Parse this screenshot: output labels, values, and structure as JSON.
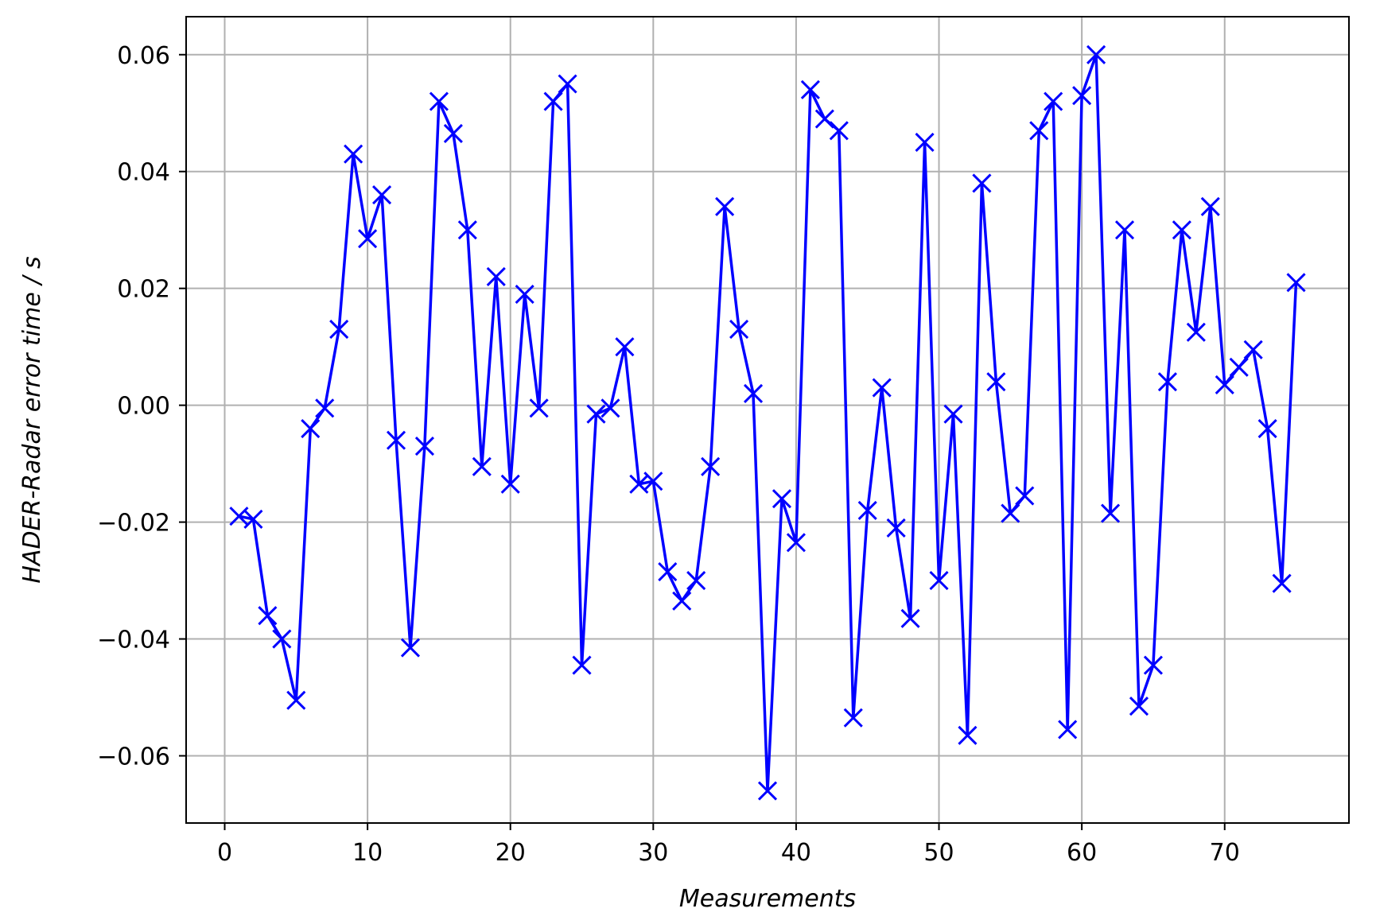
{
  "chart_data": {
    "type": "line",
    "title": "",
    "xlabel": "Measurements",
    "ylabel": "HADER-Radar error time / s",
    "xlim": [
      -2.7,
      78.7
    ],
    "ylim": [
      -0.0715,
      0.0665
    ],
    "grid": true,
    "legend": "none",
    "marker": "x",
    "color": "#0000ff",
    "x_ticks": [
      {
        "value": 0,
        "label": "0"
      },
      {
        "value": 10,
        "label": "10"
      },
      {
        "value": 20,
        "label": "20"
      },
      {
        "value": 30,
        "label": "30"
      },
      {
        "value": 40,
        "label": "40"
      },
      {
        "value": 50,
        "label": "50"
      },
      {
        "value": 60,
        "label": "60"
      },
      {
        "value": 70,
        "label": "70"
      }
    ],
    "y_ticks": [
      {
        "value": 0.06,
        "label": "0.06"
      },
      {
        "value": 0.04,
        "label": "0.04"
      },
      {
        "value": 0.02,
        "label": "0.02"
      },
      {
        "value": 0.0,
        "label": "0.00"
      },
      {
        "value": -0.02,
        "label": "−0.02"
      },
      {
        "value": -0.04,
        "label": "−0.04"
      },
      {
        "value": -0.06,
        "label": "−0.06"
      }
    ],
    "series": [
      {
        "x": [
          1,
          2,
          3,
          4,
          5,
          6,
          7,
          8,
          9,
          10,
          11,
          12,
          13,
          14,
          15,
          16,
          17,
          18,
          19,
          20,
          21,
          22,
          23,
          24,
          25,
          26,
          27,
          28,
          29,
          30,
          31,
          32,
          33,
          34,
          35,
          36,
          37,
          38,
          39,
          40,
          41,
          42,
          43,
          44,
          45,
          46,
          47,
          48,
          49,
          50,
          51,
          52,
          53,
          54,
          55,
          56,
          57,
          58,
          59,
          60,
          61,
          62,
          63,
          64,
          65,
          66,
          67,
          68,
          69,
          70,
          71,
          72,
          73,
          74,
          75
        ],
        "values": [
          -0.019,
          -0.0195,
          -0.036,
          -0.04,
          -0.0505,
          -0.004,
          -0.0005,
          0.013,
          0.043,
          0.0285,
          0.036,
          -0.006,
          -0.0415,
          -0.007,
          0.052,
          0.0465,
          0.03,
          -0.0105,
          0.022,
          -0.0135,
          0.019,
          -0.0005,
          0.052,
          0.055,
          -0.0445,
          -0.0015,
          -0.0005,
          0.01,
          -0.0135,
          -0.013,
          -0.0285,
          -0.0335,
          -0.03,
          -0.0105,
          0.034,
          0.013,
          0.002,
          -0.066,
          -0.016,
          -0.0235,
          0.054,
          0.049,
          0.047,
          -0.0535,
          -0.018,
          0.003,
          -0.021,
          -0.0365,
          0.045,
          -0.03,
          -0.0015,
          -0.0565,
          0.038,
          0.004,
          -0.0185,
          -0.0155,
          0.047,
          0.052,
          -0.0555,
          0.053,
          0.06,
          -0.0185,
          0.03,
          -0.0515,
          -0.0445,
          0.004,
          0.03,
          0.0125,
          0.034,
          0.0035,
          0.0065,
          0.0095,
          -0.004,
          -0.0305,
          0.021
        ]
      }
    ]
  }
}
